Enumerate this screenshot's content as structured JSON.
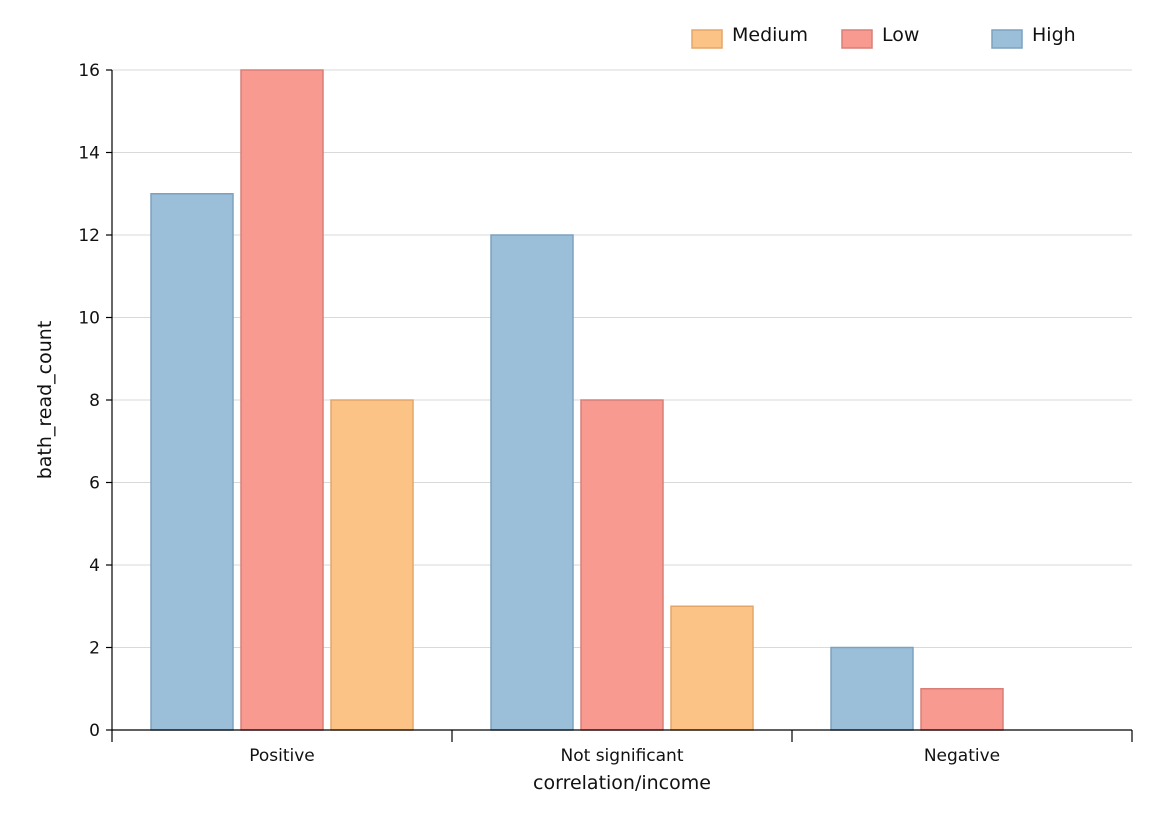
{
  "chart_data": {
    "type": "bar",
    "title": "",
    "xlabel": "correlation/income",
    "ylabel": "bath_read_count",
    "categories": [
      "Positive",
      "Not significant",
      "Negative"
    ],
    "series": [
      {
        "name": "High",
        "values": [
          13,
          12,
          2
        ],
        "color": "#9bbfd9",
        "stroke": "#7da2bf"
      },
      {
        "name": "Low",
        "values": [
          16,
          8,
          1
        ],
        "color": "#f89a90",
        "stroke": "#d97f78"
      },
      {
        "name": "Medium",
        "values": [
          8,
          3,
          0
        ],
        "color": "#fbc386",
        "stroke": "#e3a668"
      }
    ],
    "legend_order": [
      "Medium",
      "Low",
      "High"
    ],
    "legend_position": "top-right",
    "ylim": [
      0,
      16
    ],
    "yticks": [
      0,
      2,
      4,
      6,
      8,
      10,
      12,
      14,
      16
    ],
    "grid": true
  }
}
